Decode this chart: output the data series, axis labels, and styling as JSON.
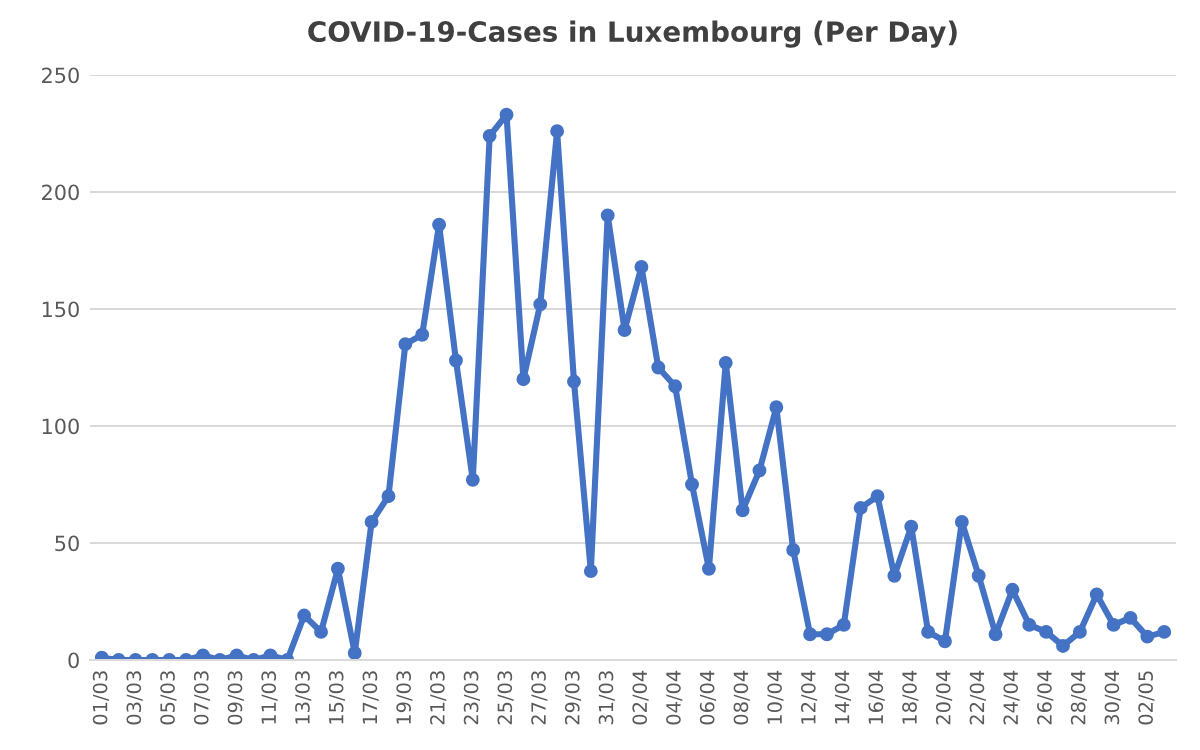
{
  "chart_data": {
    "type": "line",
    "title": "COVID-19-Cases in Luxembourg (Per Day)",
    "categories": [
      "01/03",
      null,
      "03/03",
      null,
      "05/03",
      null,
      "07/03",
      null,
      "09/03",
      null,
      "11/03",
      null,
      "13/03",
      null,
      "15/03",
      null,
      "17/03",
      null,
      "19/03",
      null,
      "21/03",
      null,
      "23/03",
      null,
      "25/03",
      null,
      "27/03",
      null,
      "29/03",
      null,
      "31/03",
      null,
      "02/04",
      null,
      "04/04",
      null,
      "06/04",
      null,
      "08/04",
      null,
      "10/04",
      null,
      "12/04",
      null,
      "14/04",
      null,
      "16/04",
      null,
      "18/04",
      null,
      "20/04",
      null,
      "22/04",
      null,
      "24/04",
      null,
      "26/04",
      null,
      "28/04",
      null,
      "30/04",
      null,
      "02/05",
      null
    ],
    "series": [
      {
        "color": "#4472c4",
        "values": [
          1,
          0,
          0,
          0,
          0,
          0,
          2,
          0,
          2,
          0,
          2,
          0,
          19,
          12,
          39,
          3,
          59,
          70,
          135,
          139,
          186,
          128,
          77,
          224,
          233,
          120,
          152,
          226,
          119,
          38,
          190,
          141,
          168,
          125,
          117,
          75,
          39,
          127,
          64,
          81,
          108,
          47,
          11,
          11,
          15,
          65,
          70,
          36,
          57,
          12,
          8,
          59,
          36,
          11,
          30,
          15,
          12,
          6,
          12,
          28,
          15,
          18,
          10,
          12
        ]
      }
    ],
    "ylim": [
      0,
      250
    ],
    "yticks": [
      0,
      50,
      100,
      150,
      200,
      250
    ],
    "grid": "y",
    "marker": "circle",
    "line_style": "solid",
    "legend": false
  }
}
